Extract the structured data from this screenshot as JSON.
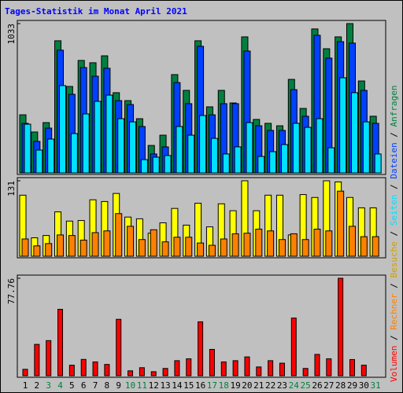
{
  "chart_data": [
    {
      "type": "bar",
      "title": "Tages-Statistik im Monat April 2021",
      "categories": [
        "1",
        "2",
        "3",
        "4",
        "5",
        "6",
        "7",
        "8",
        "9",
        "10",
        "11",
        "12",
        "13",
        "14",
        "15",
        "16",
        "17",
        "18",
        "19",
        "20",
        "21",
        "22",
        "23",
        "24",
        "25",
        "26",
        "27",
        "28",
        "29",
        "30",
        "31"
      ],
      "category_colors": [
        "#000000",
        "#000000",
        "#008040",
        "#008040",
        "#000000",
        "#000000",
        "#000000",
        "#000000",
        "#000000",
        "#008040",
        "#008040",
        "#000000",
        "#000000",
        "#000000",
        "#000000",
        "#000000",
        "#008040",
        "#008040",
        "#000000",
        "#000000",
        "#000000",
        "#000000",
        "#000000",
        "#008040",
        "#008040",
        "#000000",
        "#000000",
        "#000000",
        "#000000",
        "#000000",
        "#008040"
      ],
      "legend_separator": " / ",
      "ylim": [
        0,
        1033
      ],
      "yticks": [
        1033
      ],
      "series": [
        {
          "name": "Anfragen",
          "color": "#008040",
          "values": [
            402,
            283,
            348,
            914,
            598,
            778,
            762,
            810,
            555,
            500,
            375,
            190,
            261,
            680,
            571,
            914,
            457,
            571,
            484,
            941,
            370,
            343,
            326,
            647,
            446,
            996,
            859,
            941,
            1033,
            636,
            392
          ]
        },
        {
          "name": "Dateien",
          "color": "#0040ff",
          "values": [
            343,
            218,
            310,
            849,
            544,
            729,
            669,
            724,
            500,
            473,
            321,
            131,
            180,
            625,
            479,
            876,
            402,
            479,
            479,
            843,
            326,
            294,
            294,
            576,
            392,
            952,
            794,
            908,
            898,
            571,
            343
          ]
        },
        {
          "name": "Seiten",
          "color": "#00e0ff",
          "values": [
            337,
            158,
            234,
            604,
            272,
            408,
            495,
            538,
            375,
            353,
            92,
            109,
            120,
            321,
            261,
            397,
            239,
            131,
            180,
            348,
            114,
            147,
            196,
            343,
            315,
            375,
            174,
            658,
            555,
            353,
            131
          ]
        }
      ]
    },
    {
      "type": "bar",
      "ylim": [
        0,
        131
      ],
      "yticks": [
        131
      ],
      "series": [
        {
          "name": "Besuche",
          "color": "#ffff00",
          "values": [
            106,
            32,
            36,
            77,
            61,
            62,
            98,
            95,
            109,
            68,
            65,
            40,
            58,
            83,
            54,
            92,
            51,
            91,
            79,
            131,
            79,
            106,
            106,
            37,
            107,
            102,
            131,
            129,
            102,
            84,
            84
          ]
        },
        {
          "name": "Rechner",
          "color": "#ff8000",
          "values": [
            30,
            18,
            22,
            37,
            36,
            28,
            41,
            44,
            74,
            52,
            29,
            46,
            25,
            33,
            33,
            23,
            19,
            30,
            39,
            40,
            47,
            44,
            29,
            39,
            29,
            47,
            44,
            113,
            52,
            34,
            34
          ]
        }
      ]
    },
    {
      "type": "bar",
      "ylim": [
        0,
        77.76
      ],
      "yticks": [
        77.76
      ],
      "series": [
        {
          "name": "Volumen",
          "color": "#ff0000",
          "values": [
            5.1,
            25,
            28,
            53,
            8.4,
            13,
            11,
            9,
            45,
            3.9,
            6.4,
            3.2,
            5.8,
            12,
            13.5,
            43,
            21,
            11,
            12,
            15,
            7,
            12,
            10,
            46,
            5.8,
            17,
            13.5,
            77.76,
            12.9,
            8.4,
            0
          ]
        }
      ]
    }
  ]
}
